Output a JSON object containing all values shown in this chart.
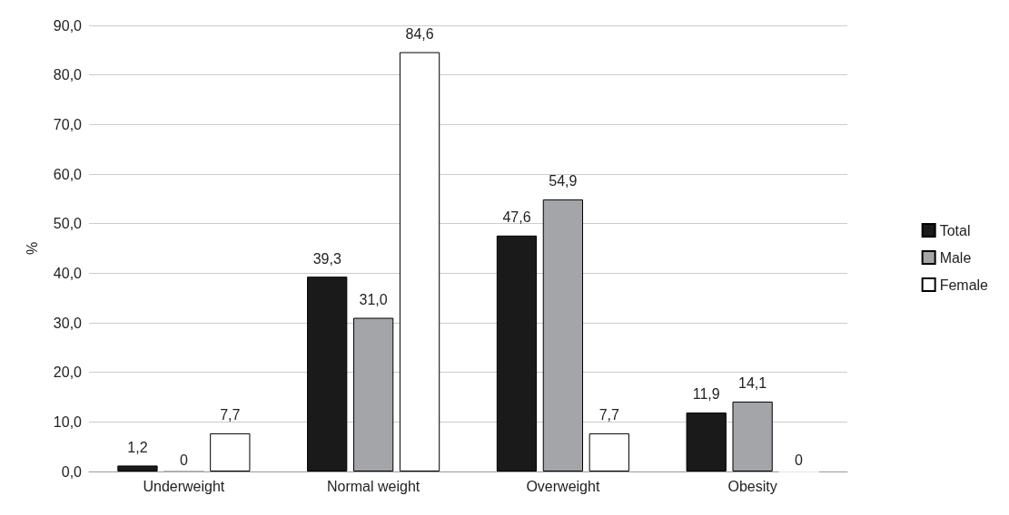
{
  "chart_data": {
    "type": "bar",
    "ylabel": "%",
    "categories": [
      "Underweight",
      "Normal weight",
      "Overweight",
      "Obesity"
    ],
    "series": [
      {
        "name": "Total",
        "color": "#1a1a1a",
        "values": [
          1.2,
          39.3,
          47.6,
          11.9
        ],
        "value_labels": [
          "1,2",
          "39,3",
          "47,6",
          "11,9"
        ]
      },
      {
        "name": "Male",
        "color": "#a3a5a8",
        "values": [
          0,
          31.0,
          54.9,
          14.1
        ],
        "value_labels": [
          "0",
          "31,0",
          "54,9",
          "14,1"
        ]
      },
      {
        "name": "Female",
        "color": "#ffffff",
        "values": [
          7.7,
          84.6,
          7.7,
          0
        ],
        "value_labels": [
          "7,7",
          "84,6",
          "7,7",
          "0"
        ]
      }
    ],
    "ylim": [
      0,
      90
    ],
    "yticks": [
      {
        "value": 0,
        "label": "0,0"
      },
      {
        "value": 10,
        "label": "10,0"
      },
      {
        "value": 20,
        "label": "20,0"
      },
      {
        "value": 30,
        "label": "30,0"
      },
      {
        "value": 40,
        "label": "40,0"
      },
      {
        "value": 50,
        "label": "50,0"
      },
      {
        "value": 60,
        "label": "60,0"
      },
      {
        "value": 70,
        "label": "70,0"
      },
      {
        "value": 80,
        "label": "80,0"
      },
      {
        "value": 90,
        "label": "90,0"
      }
    ],
    "grid": "y",
    "legend": "right"
  }
}
